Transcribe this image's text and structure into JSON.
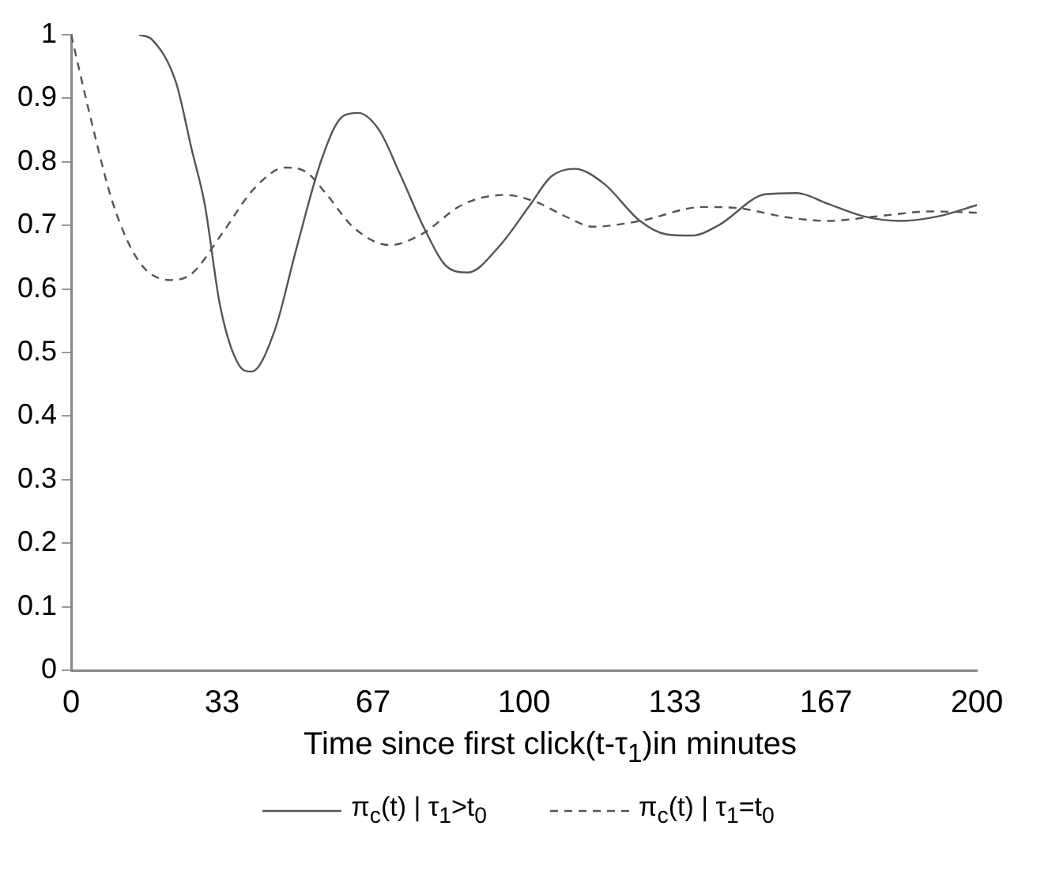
{
  "chart_data": {
    "type": "line",
    "xlabel": "Time since first click(t-τ$_{1}$)in minutes",
    "xlim": [
      0,
      200
    ],
    "xticks": [
      0,
      {
        "value": 33.33,
        "label": "33"
      },
      {
        "value": 66.67,
        "label": "67"
      },
      100,
      {
        "value": 133.33,
        "label": "133"
      },
      {
        "value": 166.67,
        "label": "167"
      },
      200
    ],
    "ylim": [
      0,
      1
    ],
    "yticks": [
      0,
      0.1,
      0.2,
      0.3,
      0.4,
      0.5,
      0.6,
      0.7,
      0.8,
      0.9,
      1
    ],
    "grid": false,
    "legend": "bottom",
    "marker": "none",
    "series": [
      {
        "name": "π$_{c}$(t) | τ$_{1}$>t$_{0}$",
        "color": "#555555",
        "line_style": "solid",
        "x": [
          15,
          17.9,
          23.1,
          26.6,
          29.5,
          32.9,
          37,
          39.8,
          45,
          49.6,
          55.4,
          60,
          63.4,
          68,
          72.6,
          78.4,
          83,
          87.6,
          94.5,
          101.4,
          106,
          111.2,
          117.6,
          125.6,
          131.4,
          137.1,
          142.9,
          153.3,
          160.2,
          167.1,
          175.1,
          183.2,
          191.3,
          200
        ],
        "values": [
          1.0,
          0.992,
          0.926,
          0.82,
          0.733,
          0.573,
          0.481,
          0.47,
          0.536,
          0.66,
          0.806,
          0.872,
          0.877,
          0.85,
          0.781,
          0.689,
          0.635,
          0.626,
          0.667,
          0.733,
          0.777,
          0.789,
          0.766,
          0.707,
          0.686,
          0.684,
          0.7,
          0.749,
          0.751,
          0.734,
          0.714,
          0.707,
          0.714,
          0.732
        ]
      },
      {
        "name": "π$_{c}$(t) | τ$_{1}$=t$_{0}$",
        "color": "#555555",
        "line_style": "dashed",
        "x": [
          0,
          4.7,
          9.3,
          15.1,
          22,
          26.6,
          33.5,
          40.4,
          47.3,
          51.9,
          56.5,
          62.3,
          70.4,
          77.3,
          86.5,
          95.7,
          102.6,
          109.5,
          115.2,
          125.6,
          139.4,
          147.5,
          157.9,
          167.1,
          177.5,
          190.1,
          200
        ],
        "values": [
          1.0,
          0.857,
          0.733,
          0.642,
          0.614,
          0.624,
          0.689,
          0.758,
          0.791,
          0.784,
          0.748,
          0.697,
          0.669,
          0.686,
          0.733,
          0.748,
          0.737,
          0.713,
          0.698,
          0.707,
          0.729,
          0.727,
          0.713,
          0.707,
          0.714,
          0.722,
          0.72
        ]
      }
    ]
  }
}
